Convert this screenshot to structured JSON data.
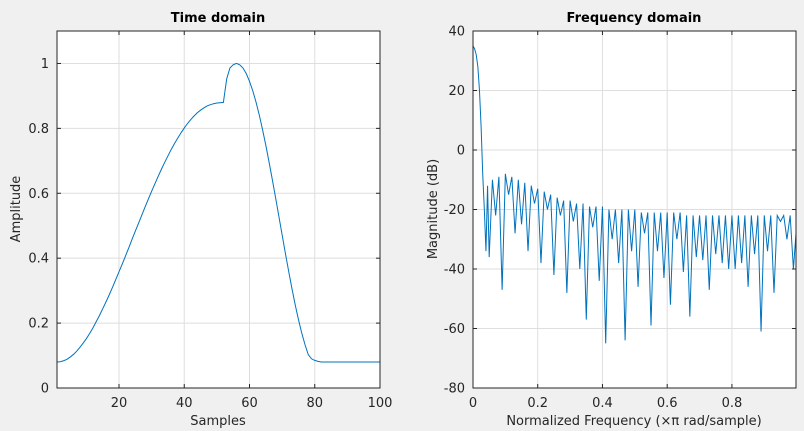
{
  "window": {
    "background": "#f0f0f0",
    "line_color": "#0072bd"
  },
  "chart_data": [
    {
      "type": "line",
      "title": "Time domain",
      "xlabel": "Samples",
      "ylabel": "Amplitude",
      "xlim": [
        1,
        100
      ],
      "ylim": [
        0,
        1.1
      ],
      "xticks": [
        20,
        40,
        60,
        80,
        100
      ],
      "xtick_labels": [
        "20",
        "40",
        "60",
        "80",
        "100"
      ],
      "yticks": [
        0,
        0.2,
        0.4,
        0.6,
        0.8,
        1
      ],
      "ytick_labels": [
        "0",
        "0.2",
        "0.4",
        "0.6",
        "0.8",
        "1"
      ],
      "grid": true,
      "series": [
        {
          "x": [
            1,
            2,
            3,
            4,
            5,
            6,
            7,
            8,
            9,
            10,
            11,
            12,
            13,
            14,
            15,
            16,
            17,
            18,
            19,
            20,
            21,
            22,
            23,
            24,
            25,
            26,
            27,
            28,
            29,
            30,
            31,
            32,
            33,
            34,
            35,
            36,
            37,
            38,
            39,
            40,
            41,
            42,
            43,
            44,
            45,
            46,
            47,
            48,
            49,
            50,
            51,
            52,
            53,
            54,
            55,
            56,
            57,
            58,
            59,
            60,
            61,
            62,
            63,
            64,
            65,
            66,
            67,
            68,
            69,
            70,
            71,
            72,
            73,
            74,
            75,
            76,
            77,
            78,
            79,
            80,
            81,
            82,
            83,
            84,
            85,
            86,
            87,
            88,
            89,
            90,
            91,
            92,
            93,
            94,
            95,
            96,
            97,
            98,
            99,
            100
          ],
          "y": [
            0.08,
            0.081,
            0.084,
            0.088,
            0.095,
            0.103,
            0.113,
            0.125,
            0.138,
            0.152,
            0.168,
            0.185,
            0.204,
            0.223,
            0.244,
            0.265,
            0.287,
            0.31,
            0.334,
            0.358,
            0.382,
            0.407,
            0.432,
            0.458,
            0.483,
            0.508,
            0.533,
            0.558,
            0.582,
            0.606,
            0.629,
            0.652,
            0.674,
            0.695,
            0.715,
            0.735,
            0.753,
            0.77,
            0.786,
            0.801,
            0.815,
            0.827,
            0.838,
            0.848,
            0.856,
            0.863,
            0.869,
            0.873,
            0.876,
            0.878,
            0.879,
            0.88,
            0.952,
            0.986,
            0.996,
            1.0,
            0.996,
            0.986,
            0.969,
            0.945,
            0.916,
            0.881,
            0.841,
            0.796,
            0.748,
            0.696,
            0.642,
            0.586,
            0.529,
            0.472,
            0.415,
            0.36,
            0.307,
            0.257,
            0.211,
            0.17,
            0.134,
            0.103,
            0.09,
            0.085,
            0.082,
            0.08,
            0.08,
            0.08,
            0.08,
            0.08,
            0.08,
            0.08,
            0.08,
            0.08,
            0.08,
            0.08,
            0.08,
            0.08,
            0.08,
            0.08,
            0.08,
            0.08,
            0.08,
            0.08
          ]
        }
      ]
    },
    {
      "type": "line",
      "title": "Frequency domain",
      "xlabel": "Normalized Frequency  (×π rad/sample)",
      "ylabel": "Magnitude (dB)",
      "xlim": [
        0,
        0.998
      ],
      "ylim": [
        -80,
        40
      ],
      "xticks": [
        0,
        0.2,
        0.4,
        0.6,
        0.8
      ],
      "xtick_labels": [
        "0",
        "0.2",
        "0.4",
        "0.6",
        "0.8"
      ],
      "yticks": [
        -80,
        -60,
        -40,
        -20,
        0,
        20,
        40
      ],
      "ytick_labels": [
        "-80",
        "-60",
        "-40",
        "-20",
        "0",
        "20",
        "40"
      ],
      "grid": true,
      "series": [
        {
          "x": [
            0,
            0.005,
            0.01,
            0.015,
            0.02,
            0.025,
            0.03,
            0.035,
            0.04,
            0.045,
            0.05,
            0.06,
            0.07,
            0.08,
            0.09,
            0.1,
            0.11,
            0.12,
            0.13,
            0.14,
            0.15,
            0.16,
            0.17,
            0.18,
            0.19,
            0.2,
            0.21,
            0.22,
            0.23,
            0.24,
            0.25,
            0.26,
            0.27,
            0.28,
            0.29,
            0.3,
            0.31,
            0.32,
            0.33,
            0.34,
            0.35,
            0.36,
            0.37,
            0.38,
            0.39,
            0.4,
            0.41,
            0.42,
            0.43,
            0.44,
            0.45,
            0.46,
            0.47,
            0.48,
            0.49,
            0.5,
            0.51,
            0.52,
            0.53,
            0.54,
            0.55,
            0.56,
            0.57,
            0.58,
            0.59,
            0.6,
            0.61,
            0.62,
            0.63,
            0.64,
            0.65,
            0.66,
            0.67,
            0.68,
            0.69,
            0.7,
            0.71,
            0.72,
            0.73,
            0.74,
            0.75,
            0.76,
            0.77,
            0.78,
            0.79,
            0.8,
            0.81,
            0.82,
            0.83,
            0.84,
            0.85,
            0.86,
            0.87,
            0.88,
            0.89,
            0.9,
            0.91,
            0.92,
            0.93,
            0.94,
            0.95,
            0.96,
            0.97,
            0.98,
            0.99,
            0.998
          ],
          "y": [
            35,
            34,
            32,
            28,
            20,
            8,
            -8,
            -20,
            -34,
            -12,
            -36,
            -10,
            -22,
            -9,
            -47,
            -8,
            -15,
            -9,
            -28,
            -10,
            -25,
            -11,
            -34,
            -12,
            -18,
            -13,
            -38,
            -14,
            -20,
            -15,
            -42,
            -16,
            -22,
            -17,
            -48,
            -17,
            -24,
            -18,
            -40,
            -18,
            -57,
            -19,
            -26,
            -19,
            -44,
            -19,
            -65,
            -20,
            -30,
            -20,
            -38,
            -20,
            -64,
            -20,
            -34,
            -20,
            -46,
            -21,
            -28,
            -21,
            -59,
            -21,
            -34,
            -21,
            -43,
            -21,
            -52,
            -21,
            -30,
            -21,
            -41,
            -22,
            -56,
            -22,
            -36,
            -22,
            -37,
            -22,
            -47,
            -22,
            -35,
            -22,
            -38,
            -22,
            -40,
            -22,
            -40,
            -22,
            -38,
            -22,
            -46,
            -22,
            -35,
            -22,
            -61,
            -22,
            -34,
            -22,
            -48,
            -22,
            -24,
            -22,
            -30,
            -22,
            -40,
            -28
          ]
        }
      ]
    }
  ]
}
